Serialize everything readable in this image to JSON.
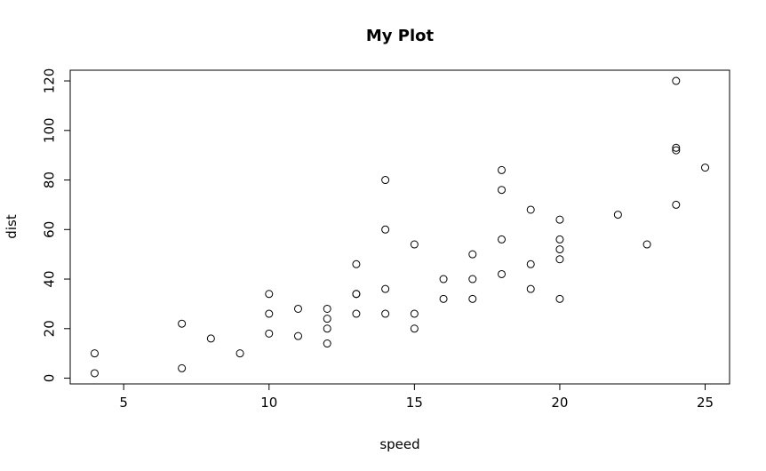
{
  "chart_data": {
    "type": "scatter",
    "title": "My Plot",
    "xlabel": "speed",
    "ylabel": "dist",
    "xlim": [
      3.16,
      25.84
    ],
    "ylim": [
      -2.32,
      124.32
    ],
    "grid": false,
    "x_ticks": [
      5,
      10,
      15,
      20,
      25
    ],
    "y_ticks": [
      0,
      20,
      40,
      60,
      80,
      100,
      120
    ],
    "x": [
      4,
      4,
      7,
      7,
      8,
      9,
      10,
      10,
      10,
      11,
      11,
      12,
      12,
      12,
      12,
      13,
      13,
      13,
      13,
      14,
      14,
      14,
      14,
      15,
      15,
      15,
      16,
      16,
      17,
      17,
      17,
      18,
      18,
      18,
      18,
      19,
      19,
      19,
      20,
      20,
      20,
      20,
      20,
      22,
      23,
      24,
      24,
      24,
      24,
      25
    ],
    "y": [
      2,
      10,
      4,
      22,
      16,
      10,
      18,
      26,
      34,
      17,
      28,
      14,
      20,
      24,
      28,
      26,
      34,
      34,
      46,
      26,
      36,
      60,
      80,
      20,
      26,
      54,
      32,
      40,
      32,
      40,
      50,
      42,
      56,
      76,
      84,
      36,
      46,
      68,
      32,
      48,
      52,
      56,
      64,
      66,
      54,
      70,
      92,
      93,
      120,
      85
    ]
  }
}
